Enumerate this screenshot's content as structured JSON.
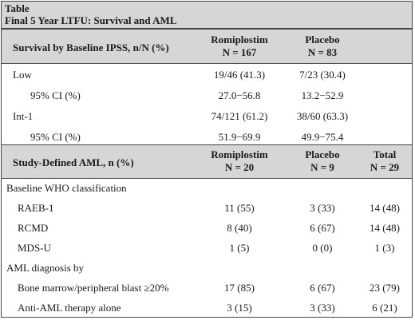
{
  "caption": {
    "line1": "Table",
    "line2": "Final 5 Year LTFU: Survival and AML"
  },
  "survival": {
    "header": {
      "label": "Survival by Baseline IPSS, n/N (%)",
      "col1": {
        "name": "Romiplostim",
        "n": "N = 167"
      },
      "col2": {
        "name": "Placebo",
        "n": "N = 83"
      }
    },
    "rows": [
      {
        "label": "Low",
        "romiplostim": "19/46 (41.3)",
        "placebo": "7/23 (30.4)"
      },
      {
        "label": "95% CI (%)",
        "romiplostim": "27.0−56.8",
        "placebo": "13.2−52.9"
      },
      {
        "label": "Int-1",
        "romiplostim": "74/121 (61.2)",
        "placebo": "38/60 (63.3)"
      },
      {
        "label": "95% CI (%)",
        "romiplostim": "51.9−69.9",
        "placebo": "49.9−75.4"
      }
    ]
  },
  "aml": {
    "header": {
      "label": "Study-Defined AML, n (%)",
      "col1": {
        "name": "Romiplostim",
        "n": "N = 20"
      },
      "col2": {
        "name": "Placebo",
        "n": "N = 9"
      },
      "col3": {
        "name": "Total",
        "n": "N = 29"
      }
    },
    "section1": "Baseline  WHO classification",
    "rows1": [
      {
        "label": "RAEB-1",
        "romiplostim": "11 (55)",
        "placebo": "3 (33)",
        "total": "14 (48)"
      },
      {
        "label": "RCMD",
        "romiplostim": "8 (40)",
        "placebo": "6 (67)",
        "total": "14 (48)"
      },
      {
        "label": "MDS-U",
        "romiplostim": "1 (5)",
        "placebo": "0 (0)",
        "total": "1 (3)"
      }
    ],
    "section2": "AML diagnosis  by",
    "rows2": [
      {
        "label": "Bone marrow/peripheral blast ≥20%",
        "romiplostim": "17 (85)",
        "placebo": "6 (67)",
        "total": "23 (79)"
      },
      {
        "label": "Anti-AML therapy alone",
        "romiplostim": "3 (15)",
        "placebo": "3 (33)",
        "total": "6 (21)"
      }
    ]
  }
}
